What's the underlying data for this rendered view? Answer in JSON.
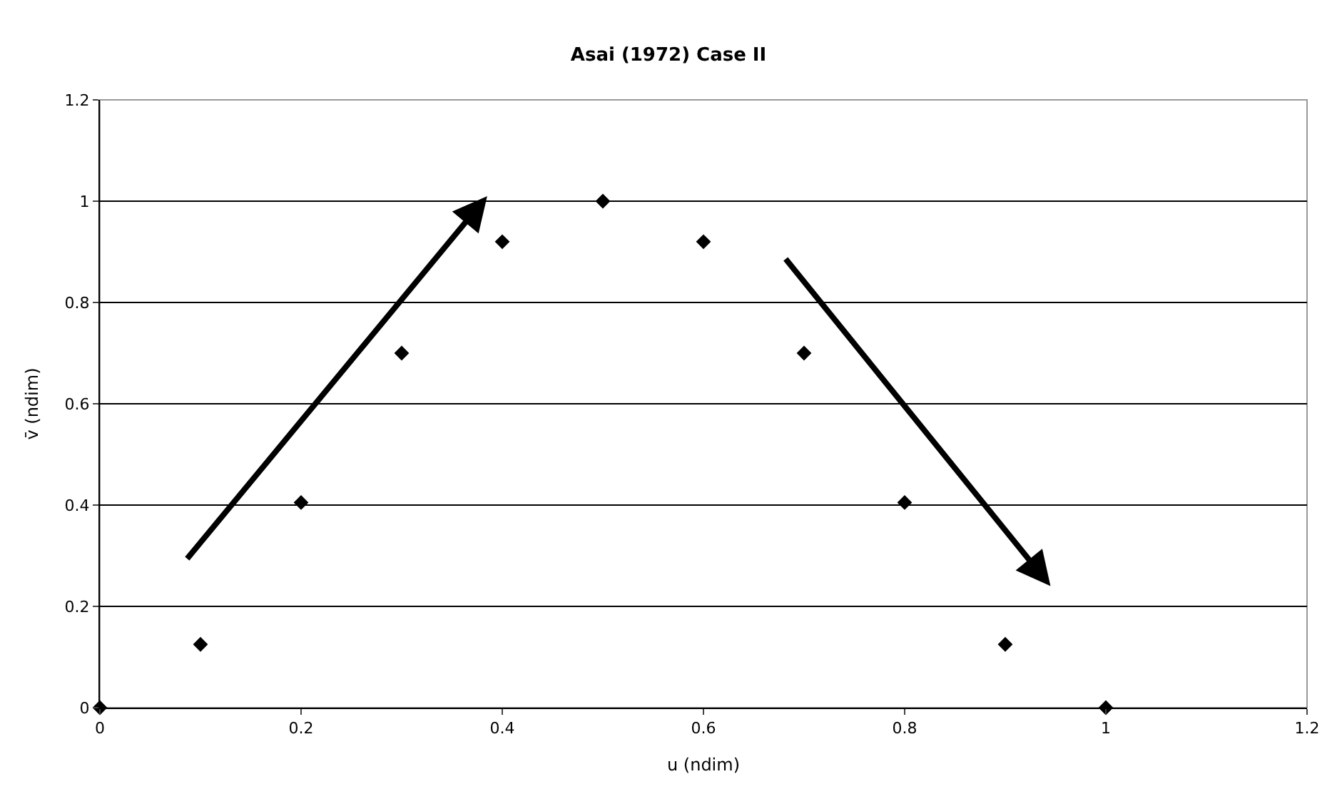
{
  "chart_data": {
    "type": "scatter",
    "title": "Asai (1972) Case II",
    "xlabel": "u (ndim)",
    "ylabel": "v̄ (ndim)",
    "x": [
      0,
      0.1,
      0.2,
      0.3,
      0.4,
      0.5,
      0.6,
      0.7,
      0.8,
      0.9,
      1.0
    ],
    "series": [
      {
        "color": "#000000",
        "values": [
          0,
          0.125,
          0.405,
          0.7,
          0.92,
          1.0,
          0.92,
          0.7,
          0.405,
          0.125,
          0
        ]
      }
    ],
    "xlim": [
      0,
      1.2
    ],
    "xticks": [
      0,
      0.2,
      0.4,
      0.6,
      0.8,
      1,
      1.2
    ],
    "ylim": [
      0,
      1.2
    ],
    "yticks": [
      0,
      0.2,
      0.4,
      0.6,
      0.8,
      1,
      1.2
    ],
    "grid": "y",
    "marker": "diamond"
  }
}
